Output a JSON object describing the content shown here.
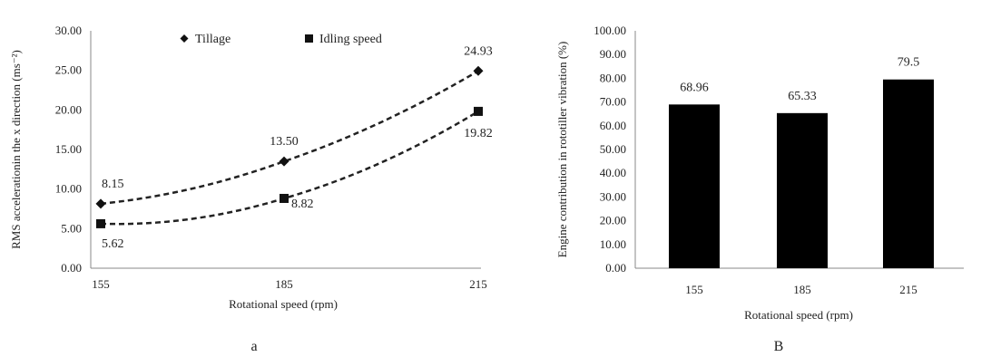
{
  "chart_data": [
    {
      "type": "line",
      "panel_label": "a",
      "xlabel": "Rotational speed (rpm)",
      "ylabel": "RMS accelerationin the x direction (ms⁻²)",
      "x": [
        155,
        185,
        215
      ],
      "ylim": [
        0,
        30
      ],
      "yticks": [
        "0.00",
        "5.00",
        "10.00",
        "15.00",
        "20.00",
        "25.00",
        "30.00"
      ],
      "grid": false,
      "legend_position": "top",
      "line_style": "dashed",
      "series": [
        {
          "name": "Tillage",
          "marker": "diamond",
          "values": [
            8.15,
            13.5,
            24.93
          ],
          "labels": [
            "8.15",
            "13.50",
            "24.93"
          ]
        },
        {
          "name": "Idling speed",
          "marker": "square",
          "values": [
            5.62,
            8.82,
            19.82
          ],
          "labels": [
            "5.62",
            "8.82",
            "19.82"
          ]
        }
      ]
    },
    {
      "type": "bar",
      "panel_label": "B",
      "xlabel": "Rotational speed (rpm)",
      "ylabel": "Engine contribution in rototiller vibration (%)",
      "categories": [
        "155",
        "185",
        "215"
      ],
      "values": [
        68.96,
        65.33,
        79.5
      ],
      "labels": [
        "68.96",
        "65.33",
        "79.5"
      ],
      "ylim": [
        0,
        100
      ],
      "yticks": [
        "0.00",
        "10.00",
        "20.00",
        "30.00",
        "40.00",
        "50.00",
        "60.00",
        "70.00",
        "80.00",
        "90.00",
        "100.00"
      ],
      "grid": false,
      "bar_color": "#000000"
    }
  ]
}
